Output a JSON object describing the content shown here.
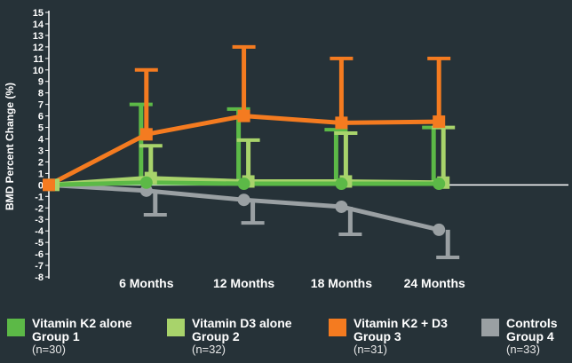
{
  "chart_data": {
    "type": "line",
    "title": "",
    "ylabel": "BMD Percent Change (%)",
    "xlabel": "",
    "ylim": [
      -8,
      15
    ],
    "yticks": [
      15,
      14,
      13,
      12,
      11,
      10,
      9,
      8,
      7,
      6,
      5,
      4,
      3,
      2,
      1,
      0,
      -1,
      -2,
      -3,
      -4,
      -5,
      -6,
      -7,
      -8
    ],
    "x_tick_labels": [
      "6 Months",
      "12 Months",
      "18 Months",
      "24 Months"
    ],
    "x_positions": [
      0,
      6,
      12,
      18,
      24
    ],
    "series": [
      {
        "name": "Vitamin K2 alone",
        "group": "Group 1",
        "n": "(n=30)",
        "color": "#5cb947",
        "values": [
          0,
          0.2,
          0.1,
          0.1,
          0.1
        ],
        "error_up": [
          0,
          7,
          6.6,
          4.8,
          5
        ]
      },
      {
        "name": "Vitamin D3 alone",
        "group": "Group 2",
        "n": "(n=32)",
        "color": "#a8d36b",
        "values": [
          0,
          0.6,
          0.3,
          0.3,
          0.2
        ],
        "error_up": [
          0,
          3.4,
          3.9,
          4.5,
          5
        ]
      },
      {
        "name": "Vitamin K2 + D3",
        "group": "Group 3",
        "n": "(n=31)",
        "color": "#f47b20",
        "values": [
          0,
          4.4,
          6,
          5.4,
          5.5
        ],
        "error_up": [
          0,
          10,
          12,
          11,
          11
        ]
      },
      {
        "name": "Controls",
        "group": "Group 4",
        "n": "(n=33)",
        "color": "#9aa0a3",
        "values": [
          0,
          -0.5,
          -1.3,
          -1.9,
          -3.9
        ],
        "error_down": [
          0,
          -2.6,
          -3.3,
          -4.3,
          -6.3
        ]
      }
    ]
  }
}
